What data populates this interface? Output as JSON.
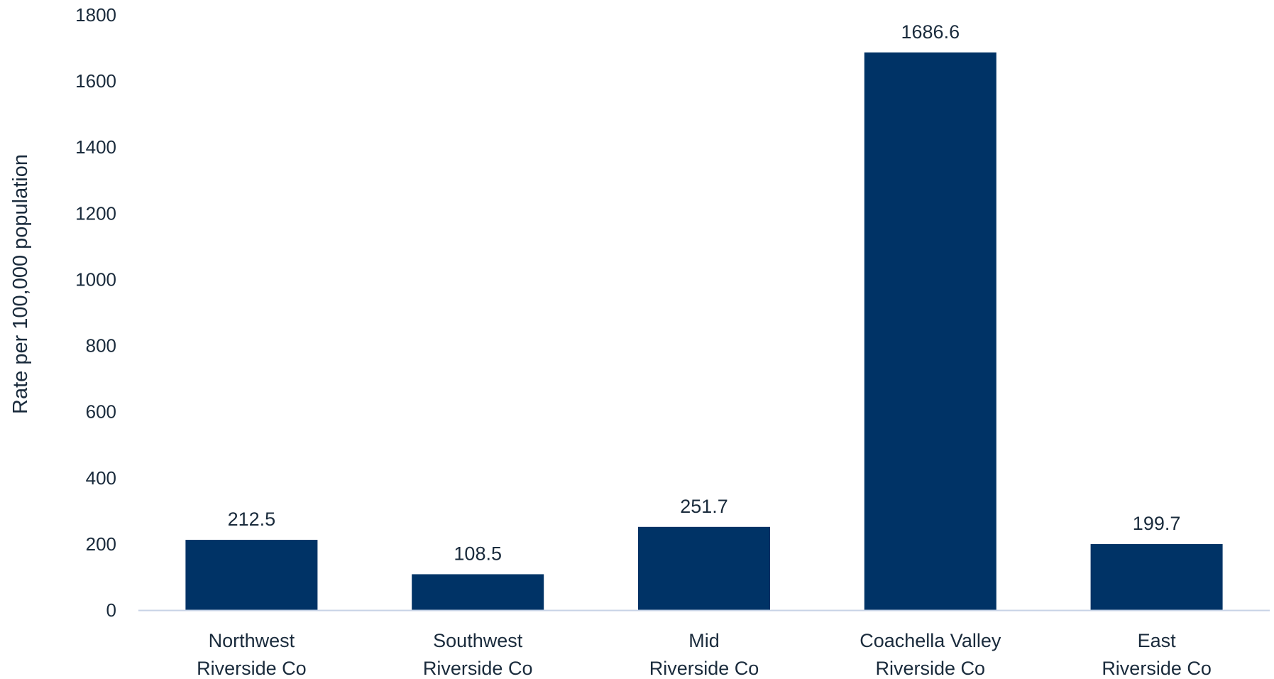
{
  "chart_data": {
    "type": "bar",
    "title": "",
    "xlabel": "",
    "ylabel": "Rate per 100,000 population",
    "categories": [
      [
        "Northwest",
        "Riverside Co"
      ],
      [
        "Southwest",
        "Riverside Co"
      ],
      [
        "Mid",
        "Riverside Co"
      ],
      [
        "Coachella Valley",
        "Riverside Co"
      ],
      [
        "East",
        "Riverside Co"
      ]
    ],
    "values": [
      212.5,
      108.5,
      251.7,
      1686.6,
      199.7
    ],
    "value_labels": [
      "212.5",
      "108.5",
      "251.7",
      "1686.6",
      "199.7"
    ],
    "ylim": [
      0,
      1800
    ],
    "yticks": [
      0,
      200,
      400,
      600,
      800,
      1000,
      1200,
      1400,
      1600,
      1800
    ],
    "grid": false,
    "legend": "none",
    "colors": {
      "bar": "#003366",
      "text": "#1a2b3c",
      "axis_line": "#c8d3e6"
    }
  }
}
